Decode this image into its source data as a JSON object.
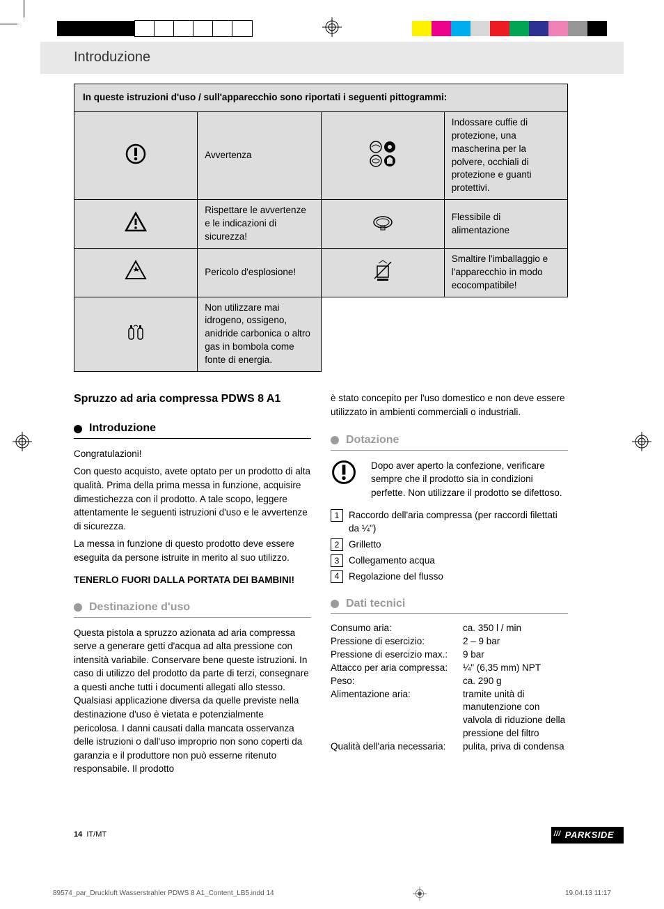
{
  "header": {
    "section_title": "Introduzione"
  },
  "pictograms": {
    "table_heading": "In queste istruzioni d'uso / sull'apparecchio sono riportati i seguenti pittogrammi:",
    "rows": [
      {
        "left": "Avvertenza",
        "right": "Indossare cuffie di protezione, una mascherina per la polvere, occhiali di protezione e guanti protettivi."
      },
      {
        "left": "Rispettare le avvertenze e le indicazioni di sicurezza!",
        "right": "Flessibile di alimentazione"
      },
      {
        "left": "Pericolo d'esplosione!",
        "right": "Smaltire l'imballaggio e l'apparecchio in modo ecocompatibile!"
      },
      {
        "left": "Non utilizzare mai idrogeno, ossigeno, anidride carbonica o altro gas in bombola come fonte di energia.",
        "right": ""
      }
    ]
  },
  "product": {
    "title": "Spruzzo ad aria compressa PDWS 8 A1"
  },
  "intro": {
    "heading": "Introduzione",
    "congrats": "Congratulazioni!",
    "p1": "Con questo acquisto, avete optato per un prodotto di alta qualità. Prima della prima messa in funzione, acquisire dimestichezza con il prodotto. A tale scopo, leggere attentamente le seguenti istruzioni d'uso e le avvertenze di sicurezza.",
    "p2": "La messa in funzione di questo prodotto deve essere eseguita da persone istruite in merito al suo utilizzo.",
    "warning": "TENERLO FUORI DALLA PORTATA DEI BAMBINI!"
  },
  "destinazione": {
    "heading": "Destinazione d'uso",
    "p_left": "Questa pistola a spruzzo azionata ad aria compressa serve a generare getti d'acqua ad alta pressione con intensità variabile. Conservare bene queste istruzioni. In caso di utilizzo del prodotto da parte di terzi, consegnare a questi anche tutti i documenti allegati allo stesso. Qualsiasi applicazione diversa da quelle previste nella destinazione d'uso è vietata e potenzialmente pericolosa. I danni causati dalla mancata osservanza delle istruzioni o dall'uso improprio non sono coperti da garanzia e il produttore non può esserne ritenuto responsabile. Il prodotto",
    "p_right": "è stato concepito per l'uso domestico e non deve essere utilizzato in ambienti commerciali o industriali."
  },
  "dotazione": {
    "heading": "Dotazione",
    "warn_text": "Dopo aver aperto la confezione, verificare sempre che il prodotto sia in condizioni perfette. Non utilizzare il prodotto se difettoso.",
    "items": [
      {
        "n": "1",
        "label": "Raccordo dell'aria compressa (per raccordi filettati da ¼\")"
      },
      {
        "n": "2",
        "label": "Grilletto"
      },
      {
        "n": "3",
        "label": "Collegamento acqua"
      },
      {
        "n": "4",
        "label": "Regolazione del flusso"
      }
    ]
  },
  "specs": {
    "heading": "Dati tecnici",
    "rows": [
      {
        "label": "Consumo aria:",
        "val": "ca. 350 l / min"
      },
      {
        "label": "Pressione di esercizio:",
        "val": "2 – 9 bar"
      },
      {
        "label": "Pressione di esercizio max.:",
        "val": "9 bar"
      },
      {
        "label": "Attacco per aria compressa:",
        "val": "¼\" (6,35 mm) NPT"
      },
      {
        "label": "Peso:",
        "val": "ca. 290 g"
      },
      {
        "label": "Alimentazione aria:",
        "val": "tramite unità di manutenzione con valvola di riduzione della pressione del filtro"
      },
      {
        "label": "Qualità dell'aria necessaria:",
        "val": "pulita, priva di condensa"
      }
    ]
  },
  "footer": {
    "page_number": "14",
    "locale": "IT/MT",
    "brand": "PARKSIDE"
  },
  "print": {
    "file": "89574_par_Druckluft Wasserstrahler PDWS 8 A1_Content_LB5.indd   14",
    "timestamp": "19.04.13   11:17"
  },
  "color_bars": {
    "left": [
      "#000000",
      "#000000",
      "#000000",
      "#000000",
      "#ffffff",
      "#ffffff",
      "#ffffff",
      "#ffffff",
      "#ffffff",
      "#ffffff"
    ],
    "right": [
      "#fff200",
      "#ec008c",
      "#00aeef",
      "#d7d7d8",
      "#ed1c24",
      "#00a651",
      "#2e3192",
      "#ee82b4",
      "#969696",
      "#000000"
    ]
  }
}
